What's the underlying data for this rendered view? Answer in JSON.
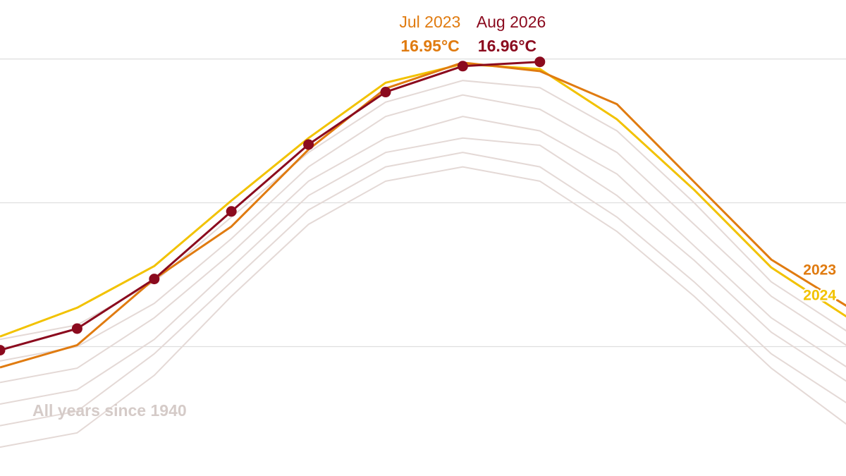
{
  "chart_data": {
    "type": "line",
    "categories": [
      null,
      null,
      null,
      null,
      null,
      null,
      null,
      null,
      null,
      null,
      null,
      null
    ],
    "ylim": [
      11.2,
      17.82
    ],
    "yticks": [
      13,
      15,
      17
    ],
    "grid": true,
    "background": {
      "label": "All years since 1940",
      "color": "#e4d9d6",
      "values": [
        [
          11.6,
          11.8,
          12.6,
          13.7,
          14.7,
          15.3,
          15.5,
          15.3,
          14.6,
          13.7,
          12.7,
          11.9
        ],
        [
          11.9,
          12.1,
          12.9,
          13.9,
          14.9,
          15.5,
          15.7,
          15.5,
          14.8,
          13.9,
          12.9,
          12.2
        ],
        [
          12.2,
          12.4,
          13.1,
          14.1,
          15.1,
          15.7,
          15.9,
          15.8,
          15.1,
          14.2,
          13.2,
          12.5
        ],
        [
          12.5,
          12.7,
          13.4,
          14.3,
          15.3,
          15.9,
          16.2,
          16.0,
          15.4,
          14.4,
          13.4,
          12.7
        ],
        [
          12.8,
          13.0,
          13.6,
          14.5,
          15.5,
          16.2,
          16.5,
          16.3,
          15.7,
          14.7,
          13.7,
          13.0
        ],
        [
          13.1,
          13.3,
          13.9,
          14.8,
          15.7,
          16.4,
          16.7,
          16.6,
          16.0,
          15.0,
          13.9,
          13.2
        ]
      ]
    },
    "series": [
      {
        "name": "2024",
        "color": "#f2c200",
        "values": [
          13.14,
          13.54,
          14.12,
          15.03,
          15.9,
          16.67,
          16.93,
          16.86,
          16.16,
          15.18,
          14.1,
          13.4
        ]
      },
      {
        "name": "2023",
        "color": "#e07b10",
        "values": [
          12.71,
          13.02,
          13.94,
          14.67,
          15.74,
          16.59,
          16.95,
          16.83,
          16.37,
          15.29,
          14.21,
          13.55
        ],
        "value_labels": [
          null,
          null,
          null,
          null,
          null,
          null,
          "16.95°C",
          null,
          null,
          null,
          null,
          null
        ],
        "annotations": [
          null,
          null,
          null,
          null,
          null,
          null,
          "Jul 2023",
          null,
          null,
          null,
          null,
          null
        ]
      },
      {
        "color": "#8b0a1e",
        "markers": true,
        "values": [
          12.95,
          13.25,
          13.94,
          14.88,
          15.81,
          16.54,
          16.9,
          16.96,
          null,
          null,
          null,
          null
        ],
        "value_labels": [
          null,
          null,
          null,
          null,
          null,
          null,
          null,
          "16.96°C",
          null,
          null,
          null,
          null
        ],
        "annotations": [
          null,
          null,
          null,
          null,
          null,
          null,
          null,
          "Aug 2026",
          null,
          null,
          null,
          null
        ]
      }
    ]
  }
}
